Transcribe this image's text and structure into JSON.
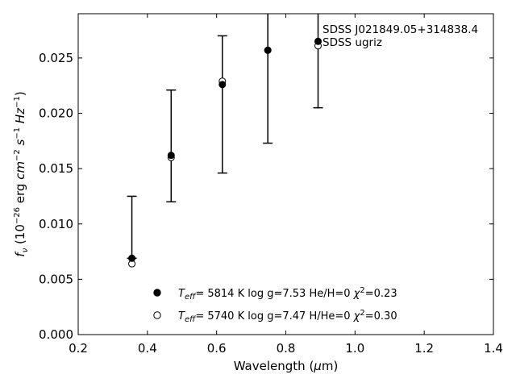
{
  "chart_data": {
    "type": "scatter",
    "xlabel": "Wavelength (μm)",
    "ylabel": "f_ν (10^-26 erg cm^-2 s^-1 Hz^-1)",
    "xlim": [
      0.2,
      1.4
    ],
    "ylim": [
      0.0,
      0.029
    ],
    "x_ticks": [
      0.2,
      0.4,
      0.6,
      0.8,
      1.0,
      1.2,
      1.4
    ],
    "x_tick_labels": [
      "0.2",
      "0.4",
      "0.6",
      "0.8",
      "1.0",
      "1.2",
      "1.4"
    ],
    "y_ticks": [
      0.0,
      0.005,
      0.01,
      0.015,
      0.02,
      0.025
    ],
    "y_tick_labels": [
      "0.000",
      "0.005",
      "0.010",
      "0.015",
      "0.020",
      "0.025"
    ],
    "grid": false,
    "legend_position": "lower-center",
    "annotation": [
      "SDSS J021849.05+314838.4",
      "SDSS ugriz"
    ],
    "observed": {
      "x": [
        0.3551,
        0.4686,
        0.6166,
        0.748,
        0.8932
      ],
      "y": [
        0.0069,
        0.0162,
        0.0226,
        0.0257,
        0.0265
      ],
      "err_low": [
        0.0069,
        0.012,
        0.0146,
        0.0173,
        0.0205
      ],
      "err_high": [
        0.0125,
        0.0221,
        0.027,
        0.0295,
        0.0295
      ]
    },
    "series": [
      {
        "marker": "filled-circle",
        "teff": "5814 K",
        "logg": "log g=7.53",
        "comp": "He/H=0",
        "chi2": "=0.23",
        "values": [
          0.0069,
          0.0162,
          0.0226,
          0.0257,
          0.0265
        ]
      },
      {
        "marker": "open-circle",
        "teff": "5740 K",
        "logg": "log g=7.47",
        "comp": "H/He=0",
        "chi2": "=0.30",
        "values": [
          0.0064,
          0.016,
          0.0229,
          0.0257,
          0.0261
        ]
      }
    ]
  }
}
